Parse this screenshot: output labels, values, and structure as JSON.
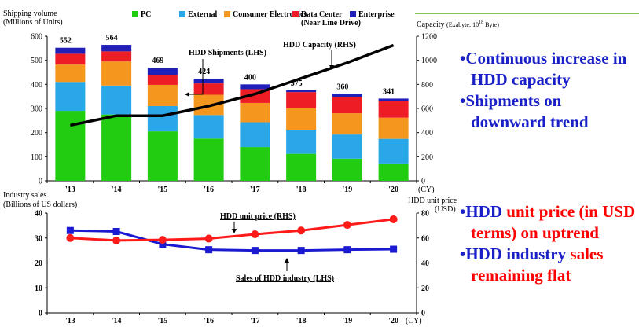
{
  "chart_data": [
    {
      "type": "bar",
      "subtype": "stacked bar with line overlay",
      "ylabel_left_line1": "Shipping volume",
      "ylabel_left_line2": "(Millions of Units)",
      "ylabel_right": "Capacity",
      "ylabel_right_unit": "(Exabyte: 10",
      "ylabel_right_exp": "18",
      "ylabel_right_unit_end": " Byte)",
      "xlabel": "(CY)",
      "categories": [
        "'13",
        "'14",
        "'15",
        "'16",
        "'17",
        "'18",
        "'19",
        "'20"
      ],
      "ylim_left": [
        0,
        600
      ],
      "yticks_left": [
        0,
        100,
        200,
        300,
        400,
        500,
        600
      ],
      "ylim_right": [
        0,
        1200
      ],
      "yticks_right": [
        0,
        200,
        400,
        600,
        800,
        1000,
        1200
      ],
      "totals": [
        "552",
        "564",
        "469",
        "424",
        "400",
        "375",
        "360",
        "341"
      ],
      "series": [
        {
          "name": "PC",
          "color": "#22cc11",
          "values": [
            290,
            275,
            205,
            175,
            140,
            112,
            92,
            72
          ]
        },
        {
          "name": "External",
          "color": "#2aa7e8",
          "values": [
            120,
            120,
            105,
            98,
            103,
            100,
            100,
            102
          ]
        },
        {
          "name": "Consumer Electronics",
          "color": "#f5961e",
          "values": [
            72,
            100,
            88,
            84,
            80,
            88,
            88,
            88
          ]
        },
        {
          "name": "Data Center",
          "sub": "(Near Line Drive)",
          "color": "#ee1c25",
          "values": [
            45,
            42,
            40,
            47,
            57,
            68,
            68,
            68
          ]
        },
        {
          "name": "Enterprise",
          "color": "#2020b8",
          "values": [
            25,
            27,
            31,
            20,
            20,
            7,
            12,
            11
          ]
        }
      ],
      "line_series": {
        "name": "HDD Capacity (RHS)",
        "color": "#000000",
        "values": [
          460,
          540,
          540,
          620,
          720,
          850,
          980,
          1125
        ]
      },
      "annotations": [
        "HDD Shipments (LHS)",
        "HDD Capacity (RHS)"
      ],
      "legend": "top"
    },
    {
      "type": "line",
      "ylabel_left_line1": "Industry sales",
      "ylabel_left_line2": "(Billions of US dollars)",
      "ylabel_right_line1": "HDD unit price",
      "ylabel_right_line2": "(USD)",
      "xlabel": "(CY)",
      "categories": [
        "'13",
        "'14",
        "'15",
        "'16",
        "'17",
        "'18",
        "'19",
        "'20"
      ],
      "ylim_left": [
        0,
        40
      ],
      "yticks_left": [
        0,
        10,
        20,
        30,
        40
      ],
      "ylim_right": [
        0,
        80
      ],
      "yticks_right": [
        0,
        20,
        40,
        60,
        80
      ],
      "series": [
        {
          "name": "Sales of HDD industry (LHS)",
          "axis": "left",
          "color": "#1a1ad0",
          "values": [
            33,
            32.6,
            27.5,
            25.3,
            25,
            25,
            25.3,
            25.5
          ]
        },
        {
          "name": "HDD unit price (RHS)",
          "axis": "right",
          "color": "#ff1a1a",
          "values": [
            60,
            58,
            58.5,
            59.5,
            63,
            66,
            70.5,
            75
          ]
        }
      ]
    }
  ],
  "bullets_top": [
    "•Continuous increase in HDD capacity",
    "•Shipments on downward trend"
  ],
  "bullets_bottom": {
    "b1": {
      "a": "•HDD ",
      "b": "unit price (in USD terms) on uptrend"
    },
    "b2": {
      "a": "•HDD industry ",
      "b": "sales remaining flat"
    }
  }
}
